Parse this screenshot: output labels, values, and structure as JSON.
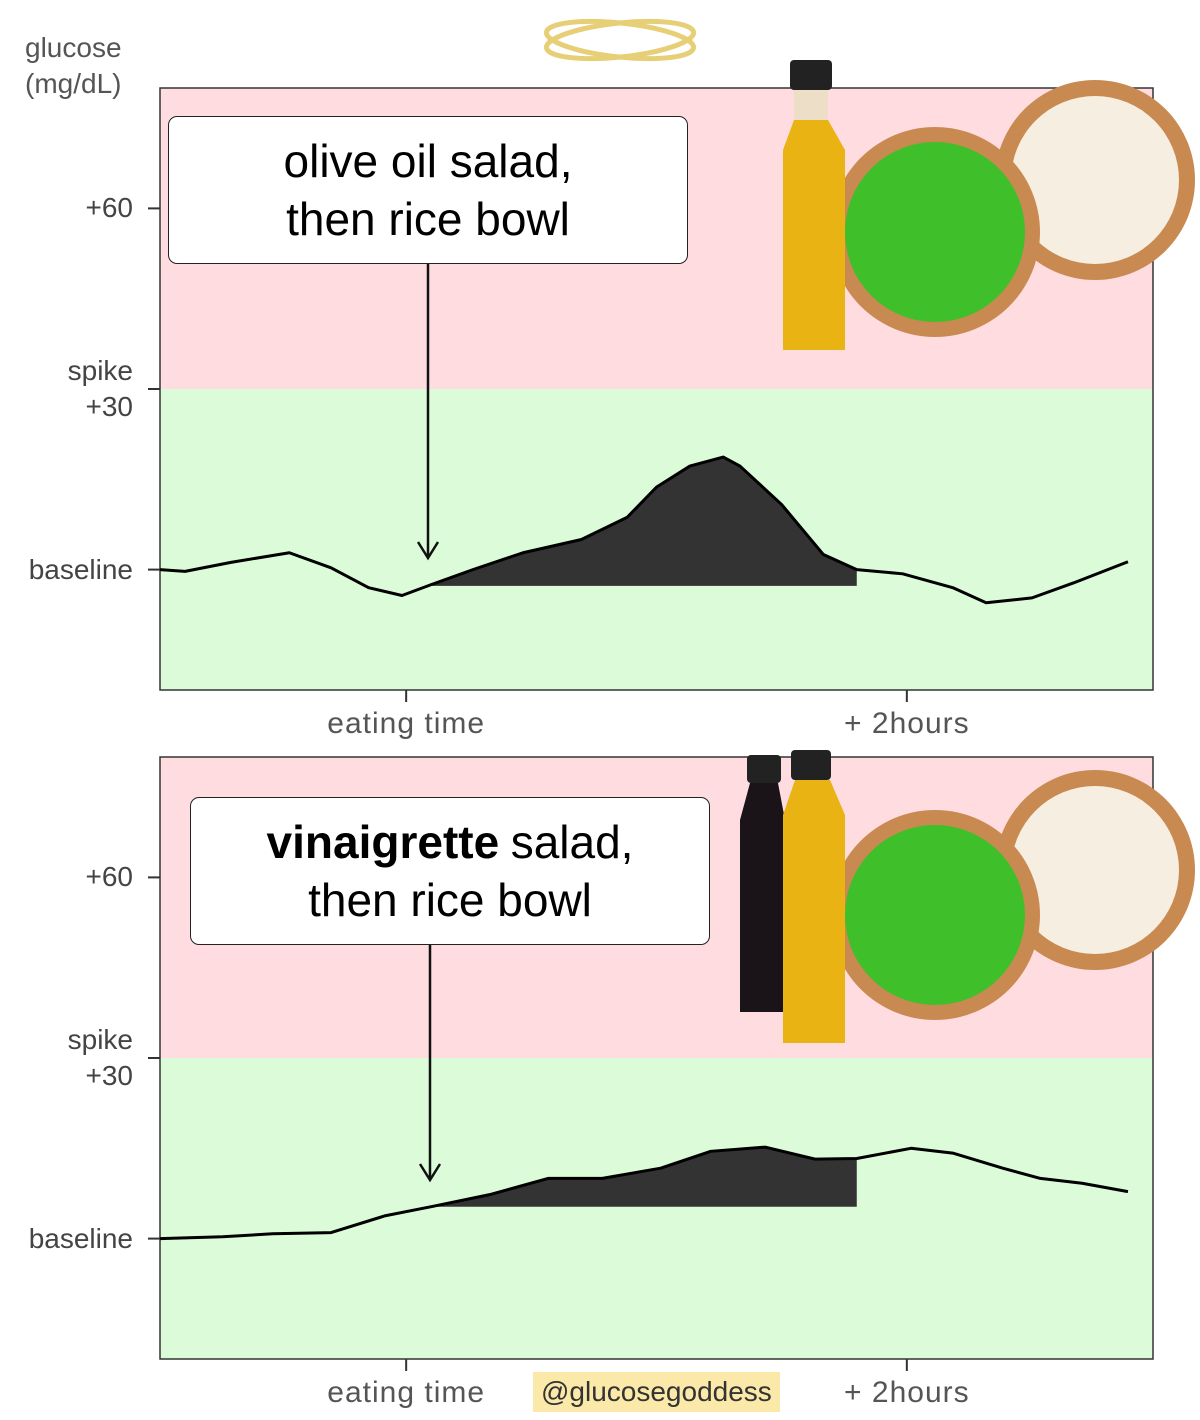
{
  "chart_data": [
    {
      "type": "line",
      "ylabel": "glucose\n(mg/dL)",
      "annotation": [
        "olive oil salad,",
        "then rice bowl"
      ],
      "x": [
        -59,
        -53,
        -42,
        -28,
        -18,
        -9,
        -1,
        6,
        16,
        28,
        42,
        53,
        60,
        68,
        76,
        80,
        90,
        100,
        108,
        119,
        131,
        139,
        150,
        160,
        173
      ],
      "series": [
        {
          "color": "#000000",
          "values": [
            0,
            -0.3,
            1.2,
            2.8,
            0.3,
            -3,
            -4.3,
            -2.5,
            0,
            2.8,
            5,
            8.7,
            13.7,
            17.2,
            18.7,
            17.2,
            10.8,
            2.5,
            0,
            -0.7,
            -3,
            -5.5,
            -4.7,
            -2.2,
            1.3
          ]
        }
      ],
      "shade_range": [
        6,
        108
      ],
      "fill_to": -2.7,
      "shade_color": "#333333",
      "spike_threshold": 30,
      "spike_color": "#ffdcdf",
      "normal_color": "#dcfcd9",
      "xlim": [
        -59,
        179
      ],
      "xticks": [
        {
          "value": 0,
          "label": "eating time"
        },
        {
          "value": 120,
          "label": "+ 2hours"
        }
      ],
      "ylim": [
        -20,
        80
      ],
      "yticks": [
        {
          "value": 0,
          "label": "baseline"
        },
        {
          "value": 30,
          "label": "spike\n+30"
        },
        {
          "value": 60,
          "label": "+60"
        }
      ]
    },
    {
      "type": "line",
      "annotation_bold": "vinaigrette",
      "annotation": [
        "salad,",
        "then rice bowl"
      ],
      "x": [
        -59,
        -44,
        -32,
        -18,
        -5,
        6,
        20,
        34,
        47,
        61,
        73,
        86,
        98,
        108,
        121,
        131,
        143,
        152,
        162,
        173
      ],
      "series": [
        {
          "color": "#000000",
          "values": [
            0,
            0.3,
            0.8,
            1,
            3.8,
            5.3,
            7.3,
            10,
            10,
            11.7,
            14.5,
            15.2,
            13.2,
            13.3,
            15,
            14.2,
            11.7,
            10,
            9.2,
            7.8
          ]
        }
      ],
      "shade_range": [
        6,
        108
      ],
      "fill_to": 5.3,
      "shade_color": "#333333",
      "spike_threshold": 30,
      "spike_color": "#ffdcdf",
      "normal_color": "#dcfcd9",
      "xlim": [
        -59,
        179
      ],
      "xticks": [
        {
          "value": 0,
          "label": "eating time"
        },
        {
          "value": 120,
          "label": "+ 2hours"
        }
      ],
      "ylim": [
        -20,
        80
      ],
      "yticks": [
        {
          "value": 0,
          "label": "baseline"
        },
        {
          "value": 30,
          "label": "spike\n+30"
        },
        {
          "value": 60,
          "label": "+60"
        }
      ]
    }
  ],
  "credit": "@glucosegoddess"
}
